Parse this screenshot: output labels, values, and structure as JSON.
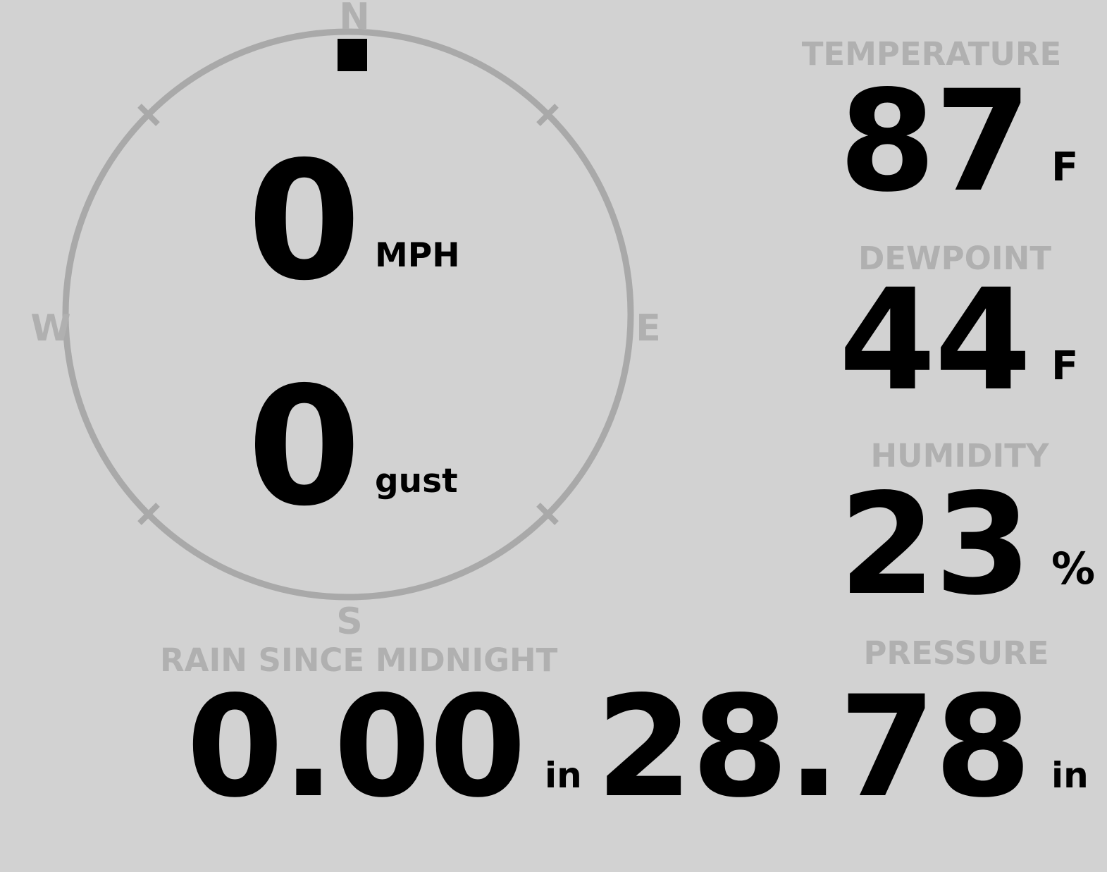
{
  "colors": {
    "background": "#d2d2d2",
    "muted": "#b0b0b0",
    "value": "#000000",
    "ring": "#a9a9a9",
    "marker": "#000000"
  },
  "compass": {
    "north_label": "N",
    "south_label": "S",
    "east_label": "E",
    "west_label": "W",
    "wind_direction_deg": 0,
    "speed": {
      "value": "0",
      "unit": "MPH"
    },
    "gust": {
      "value": "0",
      "unit": "gust"
    }
  },
  "metrics": {
    "temperature": {
      "label": "TEMPERATURE",
      "value": "87",
      "unit": "F"
    },
    "dewpoint": {
      "label": "DEWPOINT",
      "value": "44",
      "unit": "F"
    },
    "humidity": {
      "label": "HUMIDITY",
      "value": "23",
      "unit": "%"
    },
    "pressure": {
      "label": "PRESSURE",
      "value": "28.78",
      "unit": "in"
    },
    "rain": {
      "label": "RAIN SINCE MIDNIGHT",
      "value": "0.00",
      "unit": "in"
    }
  }
}
